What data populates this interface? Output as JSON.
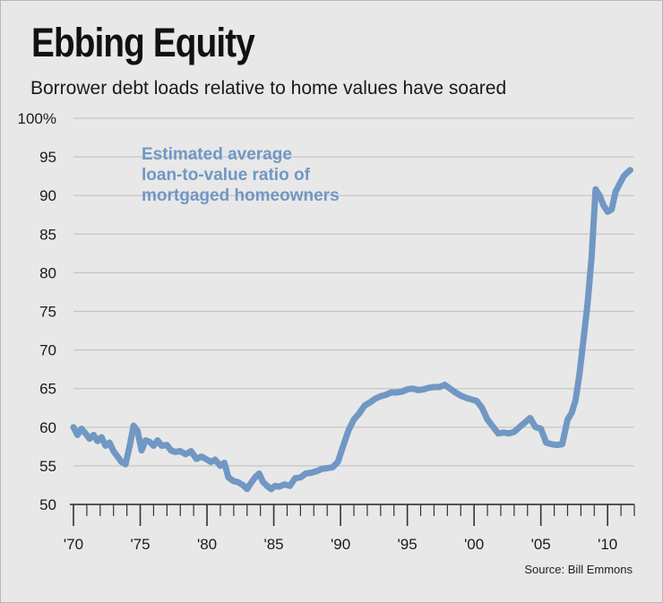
{
  "header": {
    "title": "Ebbing Equity",
    "subtitle": "Borrower debt loads relative to home values have soared"
  },
  "footer": {
    "source": "Source: Bill Emmons"
  },
  "colors": {
    "line": "#7197c4",
    "background": "#e8e8e8",
    "grid": "#c4c4c4",
    "text": "#1a1a1a"
  },
  "chart_data": {
    "type": "line",
    "title": "Ebbing Equity",
    "subtitle": "Borrower debt loads relative to home values have soared",
    "xlabel": "",
    "ylabel": "",
    "xlim": [
      1970,
      2012
    ],
    "ylim": [
      50,
      100
    ],
    "y_ticks": [
      50,
      55,
      60,
      65,
      70,
      75,
      80,
      85,
      90,
      95,
      100
    ],
    "y_tick_labels": [
      "50",
      "55",
      "60",
      "65",
      "70",
      "75",
      "80",
      "85",
      "90",
      "95",
      "100%"
    ],
    "x_tick_labels": [
      {
        "year": 1970,
        "label": "'70"
      },
      {
        "year": 1975,
        "label": "'75"
      },
      {
        "year": 1980,
        "label": "'80"
      },
      {
        "year": 1985,
        "label": "'85"
      },
      {
        "year": 1990,
        "label": "'90"
      },
      {
        "year": 1995,
        "label": "'95"
      },
      {
        "year": 2000,
        "label": "'00"
      },
      {
        "year": 2005,
        "label": "'05"
      },
      {
        "year": 2010,
        "label": "'10"
      }
    ],
    "grid": true,
    "annotation": [
      "Estimated average",
      "loan-to-value ratio of",
      "mortgaged homeowners"
    ],
    "series": [
      {
        "name": "Estimated average loan-to-value ratio of mortgaged homeowners",
        "x": [
          1970.0,
          1970.3,
          1970.6,
          1970.9,
          1971.2,
          1971.5,
          1971.8,
          1972.1,
          1972.4,
          1972.7,
          1973.0,
          1973.3,
          1973.6,
          1973.9,
          1974.2,
          1974.5,
          1974.8,
          1975.1,
          1975.4,
          1975.7,
          1976.0,
          1976.3,
          1976.6,
          1977.0,
          1977.3,
          1977.6,
          1978.0,
          1978.4,
          1978.8,
          1979.2,
          1979.6,
          1980.0,
          1980.3,
          1980.6,
          1981.0,
          1981.3,
          1981.6,
          1982.0,
          1982.3,
          1982.7,
          1983.0,
          1983.3,
          1983.6,
          1983.9,
          1984.2,
          1984.5,
          1984.8,
          1985.1,
          1985.4,
          1985.8,
          1986.2,
          1986.6,
          1987.0,
          1987.4,
          1987.8,
          1988.2,
          1988.6,
          1989.0,
          1989.4,
          1989.8,
          1990.2,
          1990.6,
          1991.0,
          1991.4,
          1991.8,
          1992.2,
          1992.6,
          1993.0,
          1993.4,
          1993.8,
          1994.2,
          1994.6,
          1995.0,
          1995.4,
          1995.8,
          1996.2,
          1996.6,
          1997.0,
          1997.4,
          1997.8,
          1998.2,
          1998.6,
          1999.0,
          1999.4,
          1999.8,
          2000.2,
          2000.6,
          2001.0,
          2001.4,
          2001.8,
          2002.2,
          2002.6,
          2003.0,
          2003.4,
          2003.8,
          2004.2,
          2004.6,
          2005.0,
          2005.4,
          2005.8,
          2006.2,
          2006.6,
          2007.0,
          2007.3,
          2007.6,
          2007.9,
          2008.2,
          2008.5,
          2008.8,
          2009.1,
          2009.4,
          2009.7,
          2010.0,
          2010.3,
          2010.6,
          2010.9,
          2011.2,
          2011.5,
          2011.7
        ],
        "values": [
          60.0,
          59.0,
          59.8,
          59.2,
          58.5,
          59.0,
          58.2,
          58.7,
          57.6,
          58.0,
          56.9,
          56.2,
          55.5,
          55.2,
          57.5,
          60.2,
          59.5,
          57.0,
          58.3,
          58.1,
          57.6,
          58.3,
          57.6,
          57.7,
          57.0,
          56.8,
          56.9,
          56.5,
          56.9,
          55.9,
          56.2,
          55.8,
          55.5,
          55.8,
          55.0,
          55.4,
          53.5,
          53.0,
          52.9,
          52.5,
          52.0,
          52.8,
          53.5,
          54.0,
          52.9,
          52.4,
          52.0,
          52.4,
          52.3,
          52.6,
          52.4,
          53.4,
          53.5,
          54.0,
          54.1,
          54.3,
          54.6,
          54.7,
          54.8,
          55.5,
          57.6,
          59.6,
          61.0,
          61.8,
          62.8,
          63.2,
          63.7,
          64.0,
          64.2,
          64.5,
          64.5,
          64.6,
          64.9,
          65.0,
          64.8,
          64.9,
          65.1,
          65.2,
          65.2,
          65.5,
          65.0,
          64.5,
          64.1,
          63.8,
          63.6,
          63.4,
          62.5,
          61.0,
          60.1,
          59.2,
          59.3,
          59.2,
          59.4,
          60.0,
          60.6,
          61.2,
          60.0,
          59.8,
          58.0,
          57.8,
          57.7,
          57.8,
          61.0,
          61.8,
          63.5,
          67.0,
          71.5,
          76.0,
          82.0,
          90.8,
          90.0,
          88.7,
          87.9,
          88.2,
          90.5,
          91.5,
          92.5,
          93.0,
          93.3
        ]
      }
    ]
  }
}
